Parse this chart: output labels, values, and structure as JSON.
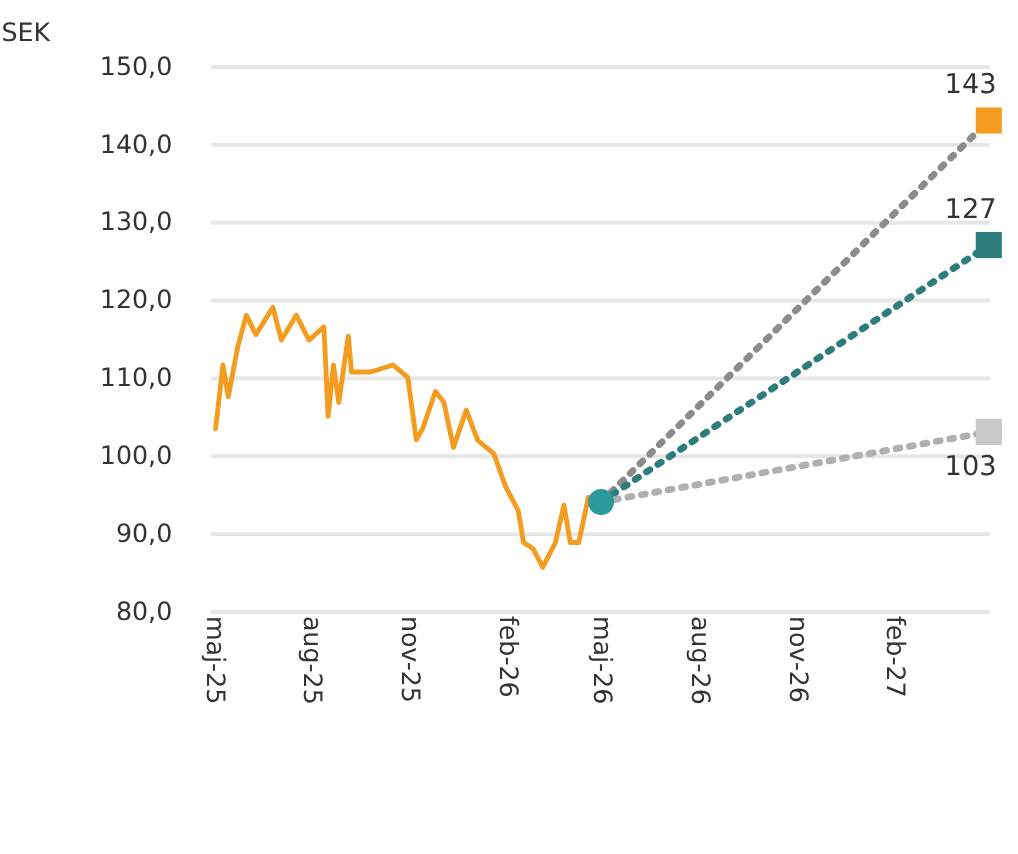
{
  "chart_data": {
    "type": "line",
    "ylabel": "SEK",
    "xlim": [
      "2025-04-28",
      "2027-05-01"
    ],
    "ylim": [
      80,
      150
    ],
    "xticks": [
      {
        "value": "2025-05-01",
        "label": "maj-25"
      },
      {
        "value": "2025-08-01",
        "label": "aug-25"
      },
      {
        "value": "2025-11-01",
        "label": "nov-25"
      },
      {
        "value": "2026-02-01",
        "label": "feb-26"
      },
      {
        "value": "2026-05-01",
        "label": "maj-26"
      },
      {
        "value": "2026-08-01",
        "label": "aug-26"
      },
      {
        "value": "2026-11-01",
        "label": "nov-26"
      },
      {
        "value": "2027-02-01",
        "label": "feb-27"
      }
    ],
    "yticks": [
      {
        "value": 80,
        "label": "80,0"
      },
      {
        "value": 90,
        "label": "90,0"
      },
      {
        "value": 100,
        "label": "100,0"
      },
      {
        "value": 110,
        "label": "110,0"
      },
      {
        "value": 120,
        "label": "120,0"
      },
      {
        "value": 130,
        "label": "130,0"
      },
      {
        "value": 140,
        "label": "140,0"
      },
      {
        "value": 150,
        "label": "150,0"
      }
    ],
    "grid": "y",
    "series": [
      {
        "color": "#f39c1f",
        "line_style": "solid",
        "marker": "none",
        "x": [
          "2025-05-03",
          "2025-05-10",
          "2025-05-15",
          "2025-05-24",
          "2025-06-01",
          "2025-06-10",
          "2025-06-26",
          "2025-07-04",
          "2025-07-18",
          "2025-07-30",
          "2025-08-13",
          "2025-08-17",
          "2025-08-22",
          "2025-08-27",
          "2025-09-05",
          "2025-09-08",
          "2025-09-26",
          "2025-10-17",
          "2025-10-31",
          "2025-11-08",
          "2025-11-14",
          "2025-11-26",
          "2025-12-04",
          "2025-12-13",
          "2025-12-25",
          "2026-01-05",
          "2026-01-20",
          "2026-01-31",
          "2026-02-12",
          "2026-02-17",
          "2026-02-26",
          "2026-03-07",
          "2026-03-19",
          "2026-03-27",
          "2026-04-02",
          "2026-04-10",
          "2026-04-19",
          "2026-04-26"
        ],
        "values": [
          103.4,
          111.6,
          107.5,
          114,
          118,
          115.5,
          119,
          114.8,
          118,
          114.8,
          116.5,
          105,
          111.6,
          106.8,
          115.3,
          110.7,
          110.7,
          111.6,
          110,
          102,
          103.4,
          108.2,
          106.8,
          101,
          105.8,
          101.9,
          100.2,
          96,
          92.9,
          88.8,
          88,
          85.6,
          88.8,
          93.6,
          88.8,
          88.8,
          94.6,
          93.6
        ]
      },
      {
        "color": "#8c8c8c",
        "line_style": "dotted",
        "marker": "none",
        "x": [
          "2026-05-01",
          "2027-05-01"
        ],
        "values": [
          94,
          143
        ]
      },
      {
        "color": "#2e7d7d",
        "line_style": "dotted",
        "marker": "none",
        "x": [
          "2026-05-01",
          "2027-05-01"
        ],
        "values": [
          94,
          127
        ]
      },
      {
        "color": "#b0b0b0",
        "line_style": "dotted",
        "marker": "none",
        "x": [
          "2026-05-01",
          "2027-05-01"
        ],
        "values": [
          94,
          103
        ]
      },
      {
        "type": "scatter",
        "color": "#2a9a9a",
        "marker": "circle",
        "x": [
          "2026-05-01"
        ],
        "values": [
          94
        ]
      },
      {
        "type": "scatter",
        "colors": [
          "#f39c1f",
          "#2e7d7d",
          "#c8c8c8"
        ],
        "marker": "square",
        "x": [
          "2027-05-01",
          "2027-05-01",
          "2027-05-01"
        ],
        "values": [
          143,
          127,
          103
        ]
      }
    ],
    "annotations": [
      {
        "text": "143",
        "x": "2027-05-01",
        "y": 143
      },
      {
        "text": "127",
        "x": "2027-05-01",
        "y": 127
      },
      {
        "text": "103",
        "x": "2027-05-01",
        "y": 103
      }
    ]
  }
}
